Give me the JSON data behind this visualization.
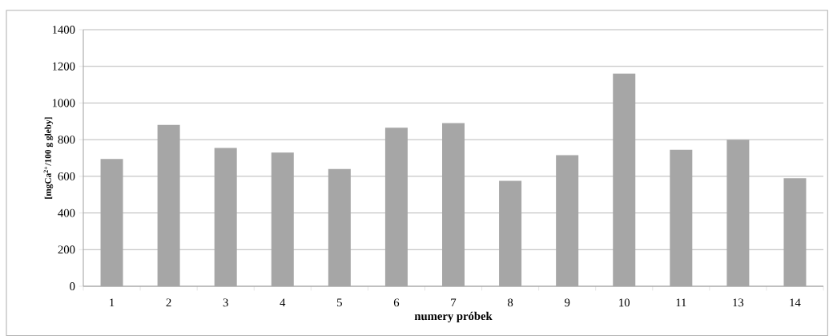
{
  "chart_data": {
    "type": "bar",
    "xlabel": "numery próbek",
    "ylabel": "[mgCa$^{2+}$/100 g gleby]",
    "categories": [
      "1",
      "2",
      "3",
      "4",
      "5",
      "6",
      "7",
      "8",
      "9",
      "10",
      "11",
      "13",
      "14"
    ],
    "values": [
      695,
      880,
      755,
      730,
      640,
      865,
      890,
      575,
      715,
      1160,
      745,
      800,
      590
    ],
    "color": "#a6a6a6",
    "ylim": [
      0,
      1400
    ],
    "yticks": [
      0,
      200,
      400,
      600,
      800,
      1000,
      1200,
      1400
    ],
    "grid": "y"
  }
}
